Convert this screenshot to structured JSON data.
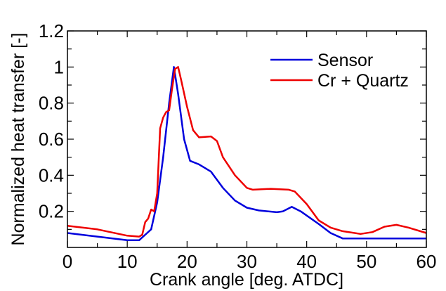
{
  "chart_data": {
    "type": "line",
    "title": "",
    "xlabel": "Crank angle [deg. ATDC]",
    "ylabel": "Normalized heat transfer [-]",
    "xlim": [
      0,
      60
    ],
    "ylim": [
      0,
      1.2
    ],
    "x_ticks": [
      0,
      10,
      20,
      30,
      40,
      50,
      60
    ],
    "x_tick_labels": [
      "0",
      "10",
      "20",
      "30",
      "40",
      "50",
      "60"
    ],
    "x_minor_step": 5,
    "y_ticks": [
      0.2,
      0.4,
      0.6,
      0.8,
      1,
      1.2
    ],
    "y_tick_labels": [
      "0.2",
      "0.4",
      "0.6",
      "0.8",
      "1",
      "1.2"
    ],
    "y_minor_step": 0.1,
    "grid": false,
    "legend_position": "top-right",
    "series": [
      {
        "name": "Sensor",
        "color": "#0000dd",
        "x": [
          0,
          5,
          10,
          12,
          13,
          14,
          15,
          16,
          17,
          17.8,
          18.5,
          19.5,
          20.5,
          22,
          24,
          26,
          28,
          30,
          32,
          35,
          36,
          37.5,
          39,
          42,
          44,
          46,
          50,
          60
        ],
        "y": [
          0.08,
          0.06,
          0.04,
          0.04,
          0.07,
          0.1,
          0.25,
          0.5,
          0.8,
          1.0,
          0.85,
          0.6,
          0.48,
          0.46,
          0.42,
          0.33,
          0.26,
          0.22,
          0.205,
          0.195,
          0.2,
          0.225,
          0.2,
          0.13,
          0.08,
          0.05,
          0.05,
          0.05
        ]
      },
      {
        "name": "Cr + Quartz",
        "color": "#ee0000",
        "x": [
          0,
          5,
          10,
          12,
          12.5,
          13,
          13.5,
          14,
          14.5,
          15,
          15.5,
          16,
          16.5,
          17,
          17.5,
          18,
          18.5,
          19,
          20,
          21,
          22,
          24,
          25,
          26,
          28,
          30,
          31,
          34,
          37,
          38,
          40,
          42,
          44,
          46,
          49,
          51,
          53,
          55,
          57,
          60
        ],
        "y": [
          0.12,
          0.1,
          0.065,
          0.06,
          0.07,
          0.14,
          0.16,
          0.21,
          0.2,
          0.3,
          0.66,
          0.72,
          0.75,
          0.76,
          0.88,
          0.99,
          1.0,
          0.93,
          0.78,
          0.65,
          0.61,
          0.615,
          0.59,
          0.5,
          0.4,
          0.33,
          0.32,
          0.325,
          0.32,
          0.31,
          0.24,
          0.15,
          0.11,
          0.09,
          0.075,
          0.085,
          0.115,
          0.125,
          0.11,
          0.08
        ]
      }
    ]
  }
}
